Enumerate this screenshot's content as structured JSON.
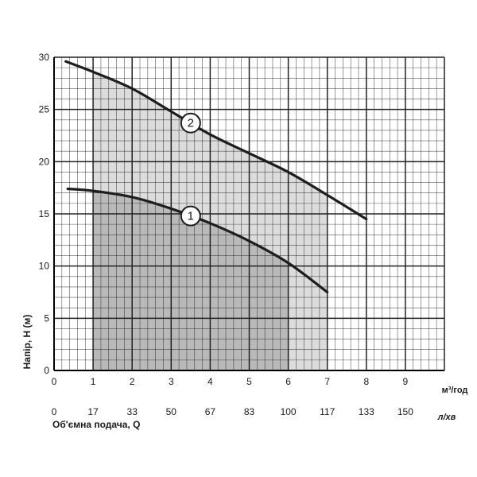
{
  "chart_data": {
    "type": "line",
    "ylabel": "Напір, H (м)",
    "xlabel": "Об'ємна подача, Q",
    "x_unit_primary": "м³/год",
    "x_unit_secondary": "л/хв",
    "xlim": [
      0,
      10
    ],
    "ylim": [
      0,
      30
    ],
    "x_ticks": [
      0,
      1,
      2,
      3,
      4,
      5,
      6,
      7,
      8,
      9
    ],
    "y_ticks": [
      0,
      5,
      10,
      15,
      20,
      25,
      30
    ],
    "secondary_x_ticks": [
      {
        "at": 0,
        "label": "0"
      },
      {
        "at": 1,
        "label": "17"
      },
      {
        "at": 2,
        "label": "33"
      },
      {
        "at": 3,
        "label": "50"
      },
      {
        "at": 4,
        "label": "67"
      },
      {
        "at": 5,
        "label": "83"
      },
      {
        "at": 6,
        "label": "100"
      },
      {
        "at": 7,
        "label": "117"
      },
      {
        "at": 8,
        "label": "133"
      },
      {
        "at": 9,
        "label": "150"
      }
    ],
    "grid": true,
    "series": [
      {
        "name": "1",
        "x": [
          0.35,
          1,
          2,
          3,
          4,
          5,
          6,
          7
        ],
        "y": [
          17.4,
          17.2,
          16.6,
          15.5,
          14.1,
          12.4,
          10.3,
          7.5
        ],
        "operating_range": [
          1,
          7
        ]
      },
      {
        "name": "2",
        "x": [
          0.3,
          1,
          2,
          3,
          4,
          5,
          6,
          7,
          8
        ],
        "y": [
          29.6,
          28.6,
          27.0,
          24.8,
          22.6,
          20.8,
          19.0,
          16.8,
          14.5
        ],
        "operating_range": [
          1,
          7
        ]
      }
    ],
    "annotations": [
      {
        "label": "1",
        "x": 3.5,
        "series": "1"
      },
      {
        "label": "2",
        "x": 3.5,
        "series": "2"
      }
    ],
    "shading_split_x": 6
  }
}
